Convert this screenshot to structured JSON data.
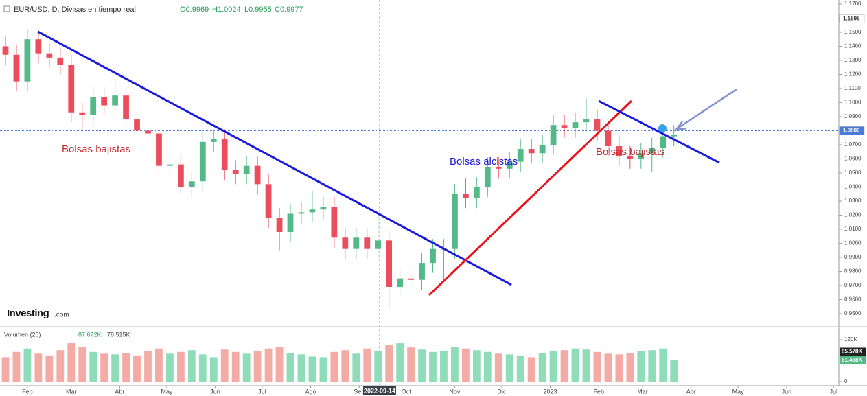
{
  "header": {
    "symbol": "EUR/USD, D, Divisas en tiempo real",
    "ohlc": [
      "O0.9969",
      "H1.0024",
      "L0.9955",
      "C0.9977"
    ]
  },
  "logo": [
    "Investing",
    ".com"
  ],
  "chart_data": [
    {
      "type": "candlestick",
      "up_color": "#53b987",
      "down_color": "#eb4d5c",
      "xlim": [
        13.5,
        549.4
      ],
      "ylim": [
        0.9412,
        1.1729
      ],
      "xticks": [
        {
          "value": 31,
          "label": "Feb"
        },
        {
          "value": 59,
          "label": "Mar"
        },
        {
          "value": 90,
          "label": "Abr"
        },
        {
          "value": 120,
          "label": "May"
        },
        {
          "value": 151,
          "label": "Jun"
        },
        {
          "value": 181,
          "label": "Jul"
        },
        {
          "value": 212,
          "label": "Ago"
        },
        {
          "value": 243,
          "label": "Sep"
        },
        {
          "value": 273,
          "label": "Oct"
        },
        {
          "value": 304,
          "label": "Nov"
        },
        {
          "value": 334,
          "label": "Dic"
        },
        {
          "value": 365,
          "label": "2023"
        },
        {
          "value": 396,
          "label": "Feb"
        },
        {
          "value": 424,
          "label": "Mar"
        },
        {
          "value": 455,
          "label": "Abr"
        },
        {
          "value": 485,
          "label": "May"
        },
        {
          "value": 516,
          "label": "Jun"
        },
        {
          "value": 546,
          "label": "Jul"
        }
      ],
      "yticks": [
        {
          "value": 1.17,
          "label": "1.1700"
        },
        {
          "value": 1.16,
          "label": "1.1600"
        },
        {
          "value": 1.15,
          "label": "1.1500"
        },
        {
          "value": 1.14,
          "label": "1.1400"
        },
        {
          "value": 1.13,
          "label": "1.1300"
        },
        {
          "value": 1.12,
          "label": "1.1200"
        },
        {
          "value": 1.11,
          "label": "1.1100"
        },
        {
          "value": 1.1,
          "label": "1.1000"
        },
        {
          "value": 1.09,
          "label": "1.0900"
        },
        {
          "value": 1.08,
          "label": "1.0800"
        },
        {
          "value": 1.07,
          "label": "1.0700"
        },
        {
          "value": 1.06,
          "label": "1.0600"
        },
        {
          "value": 1.05,
          "label": "1.0500"
        },
        {
          "value": 1.04,
          "label": "1.0400"
        },
        {
          "value": 1.03,
          "label": "1.0300"
        },
        {
          "value": 1.02,
          "label": "1.0200"
        },
        {
          "value": 1.01,
          "label": "1.0100"
        },
        {
          "value": 1,
          "label": "1.0000"
        },
        {
          "value": 0.99,
          "label": "0.9900"
        },
        {
          "value": 0.98,
          "label": "0.9800"
        },
        {
          "value": 0.97,
          "label": "0.9700"
        },
        {
          "value": 0.96,
          "label": "0.9600"
        },
        {
          "value": 0.95,
          "label": "0.9500"
        }
      ],
      "price_lines": [
        {
          "value": 1.1595,
          "label": "1.1595"
        },
        {
          "value": 1.08,
          "label": "1.0800"
        }
      ],
      "crosshair": {
        "value": 256,
        "label": "2022-09-14"
      },
      "annotations": [
        "Bolsas bajistas",
        "Bolsas alcistas",
        "Bolsas bajistas"
      ],
      "x": [
        17,
        24,
        31,
        38,
        45,
        52,
        59,
        66,
        73,
        80,
        87,
        94,
        101,
        108,
        115,
        122,
        129,
        136,
        143,
        150,
        157,
        164,
        171,
        178,
        185,
        192,
        199,
        206,
        213,
        220,
        227,
        234,
        241,
        248,
        255,
        262,
        269,
        276,
        283,
        290,
        297,
        304,
        311,
        318,
        325,
        332,
        339,
        346,
        353,
        360,
        367,
        374,
        381,
        388,
        395,
        402,
        409,
        416,
        423,
        430,
        437,
        444
      ],
      "open": [
        1.14,
        1.134,
        1.115,
        1.145,
        1.135,
        1.132,
        1.127,
        1.093,
        1.091,
        1.104,
        1.098,
        1.105,
        1.088,
        1.08,
        1.078,
        1.055,
        1.056,
        1.04,
        1.044,
        1.072,
        1.074,
        1.052,
        1.049,
        1.055,
        1.042,
        1.018,
        1.008,
        1.021,
        1.022,
        1.024,
        1.026,
        1.004,
        0.996,
        1.004,
        0.996,
        1.002,
        0.969,
        0.975,
        0.974,
        0.986,
        0.996,
        0.996,
        1.035,
        1.032,
        1.04,
        1.054,
        1.053,
        1.058,
        1.067,
        1.064,
        1.07,
        1.084,
        1.082,
        1.086,
        1.088,
        1.08,
        1.069,
        1.062,
        1.06,
        1.064,
        1.068,
        1.076
      ],
      "high": [
        1.147,
        1.141,
        1.152,
        1.152,
        1.142,
        1.139,
        1.134,
        1.1,
        1.111,
        1.111,
        1.118,
        1.112,
        1.095,
        1.087,
        1.085,
        1.063,
        1.063,
        1.051,
        1.079,
        1.081,
        1.081,
        1.059,
        1.062,
        1.062,
        1.049,
        1.025,
        1.028,
        1.029,
        1.037,
        1.033,
        1.033,
        1.011,
        1.011,
        1.011,
        1.02,
        1.009,
        0.982,
        0.982,
        0.993,
        1.003,
        1.003,
        1.042,
        1.046,
        1.047,
        1.061,
        1.061,
        1.065,
        1.074,
        1.074,
        1.077,
        1.091,
        1.091,
        1.093,
        1.103,
        1.095,
        1.087,
        1.076,
        1.069,
        1.071,
        1.075,
        1.083,
        1.084
      ],
      "low": [
        1.127,
        1.108,
        1.108,
        1.128,
        1.125,
        1.12,
        1.086,
        1.08,
        1.084,
        1.091,
        1.091,
        1.081,
        1.073,
        1.071,
        1.048,
        1.048,
        1.035,
        1.033,
        1.037,
        1.065,
        1.045,
        1.042,
        1.042,
        1.035,
        1.011,
        0.995,
        1.001,
        1.014,
        1.015,
        1.017,
        0.997,
        0.989,
        0.989,
        0.989,
        0.989,
        0.954,
        0.962,
        0.967,
        0.967,
        0.979,
        0.973,
        0.989,
        1.025,
        1.025,
        1.033,
        1.046,
        1.046,
        1.051,
        1.057,
        1.057,
        1.063,
        1.075,
        1.075,
        1.079,
        1.073,
        1.062,
        1.055,
        1.053,
        1.053,
        1.051,
        1.061,
        1.069
      ],
      "close": [
        1.134,
        1.115,
        1.145,
        1.135,
        1.132,
        1.127,
        1.093,
        1.091,
        1.104,
        1.098,
        1.105,
        1.088,
        1.08,
        1.078,
        1.055,
        1.056,
        1.04,
        1.044,
        1.072,
        1.074,
        1.052,
        1.049,
        1.055,
        1.042,
        1.018,
        1.008,
        1.021,
        1.022,
        1.024,
        1.026,
        1.004,
        0.996,
        1.004,
        0.996,
        1.002,
        0.969,
        0.975,
        0.974,
        0.986,
        0.996,
        0.996,
        1.035,
        1.032,
        1.04,
        1.054,
        1.053,
        1.058,
        1.067,
        1.064,
        1.07,
        1.084,
        1.082,
        1.086,
        1.088,
        1.08,
        1.069,
        1.062,
        1.06,
        1.064,
        1.068,
        1.076,
        1.077
      ]
    },
    {
      "type": "volume",
      "title": "Volumen (20)",
      "legend_values": [
        "87.672K",
        "78.515K"
      ],
      "up_color": "#8fdcb8",
      "down_color": "#f4aaa5",
      "ylim": [
        -7.9,
        153.4
      ],
      "yticks": [
        {
          "value": 120,
          "label": "120K"
        },
        0
      ],
      "badges": [
        {
          "value": 85.578,
          "label": "85.578K",
          "color": "#222"
        },
        {
          "value": 61.468,
          "label": "61.468K",
          "color": "#53b987"
        }
      ],
      "values": [
        70,
        85,
        95,
        80,
        75,
        90,
        110,
        100,
        85,
        80,
        78,
        82,
        75,
        88,
        95,
        80,
        85,
        90,
        78,
        70,
        92,
        85,
        80,
        88,
        95,
        100,
        82,
        78,
        72,
        70,
        85,
        90,
        80,
        95,
        88,
        105,
        110,
        98,
        92,
        85,
        88,
        100,
        95,
        90,
        85,
        80,
        78,
        75,
        70,
        82,
        88,
        90,
        95,
        92,
        85,
        80,
        78,
        82,
        88,
        90,
        95,
        61.468
      ]
    }
  ]
}
